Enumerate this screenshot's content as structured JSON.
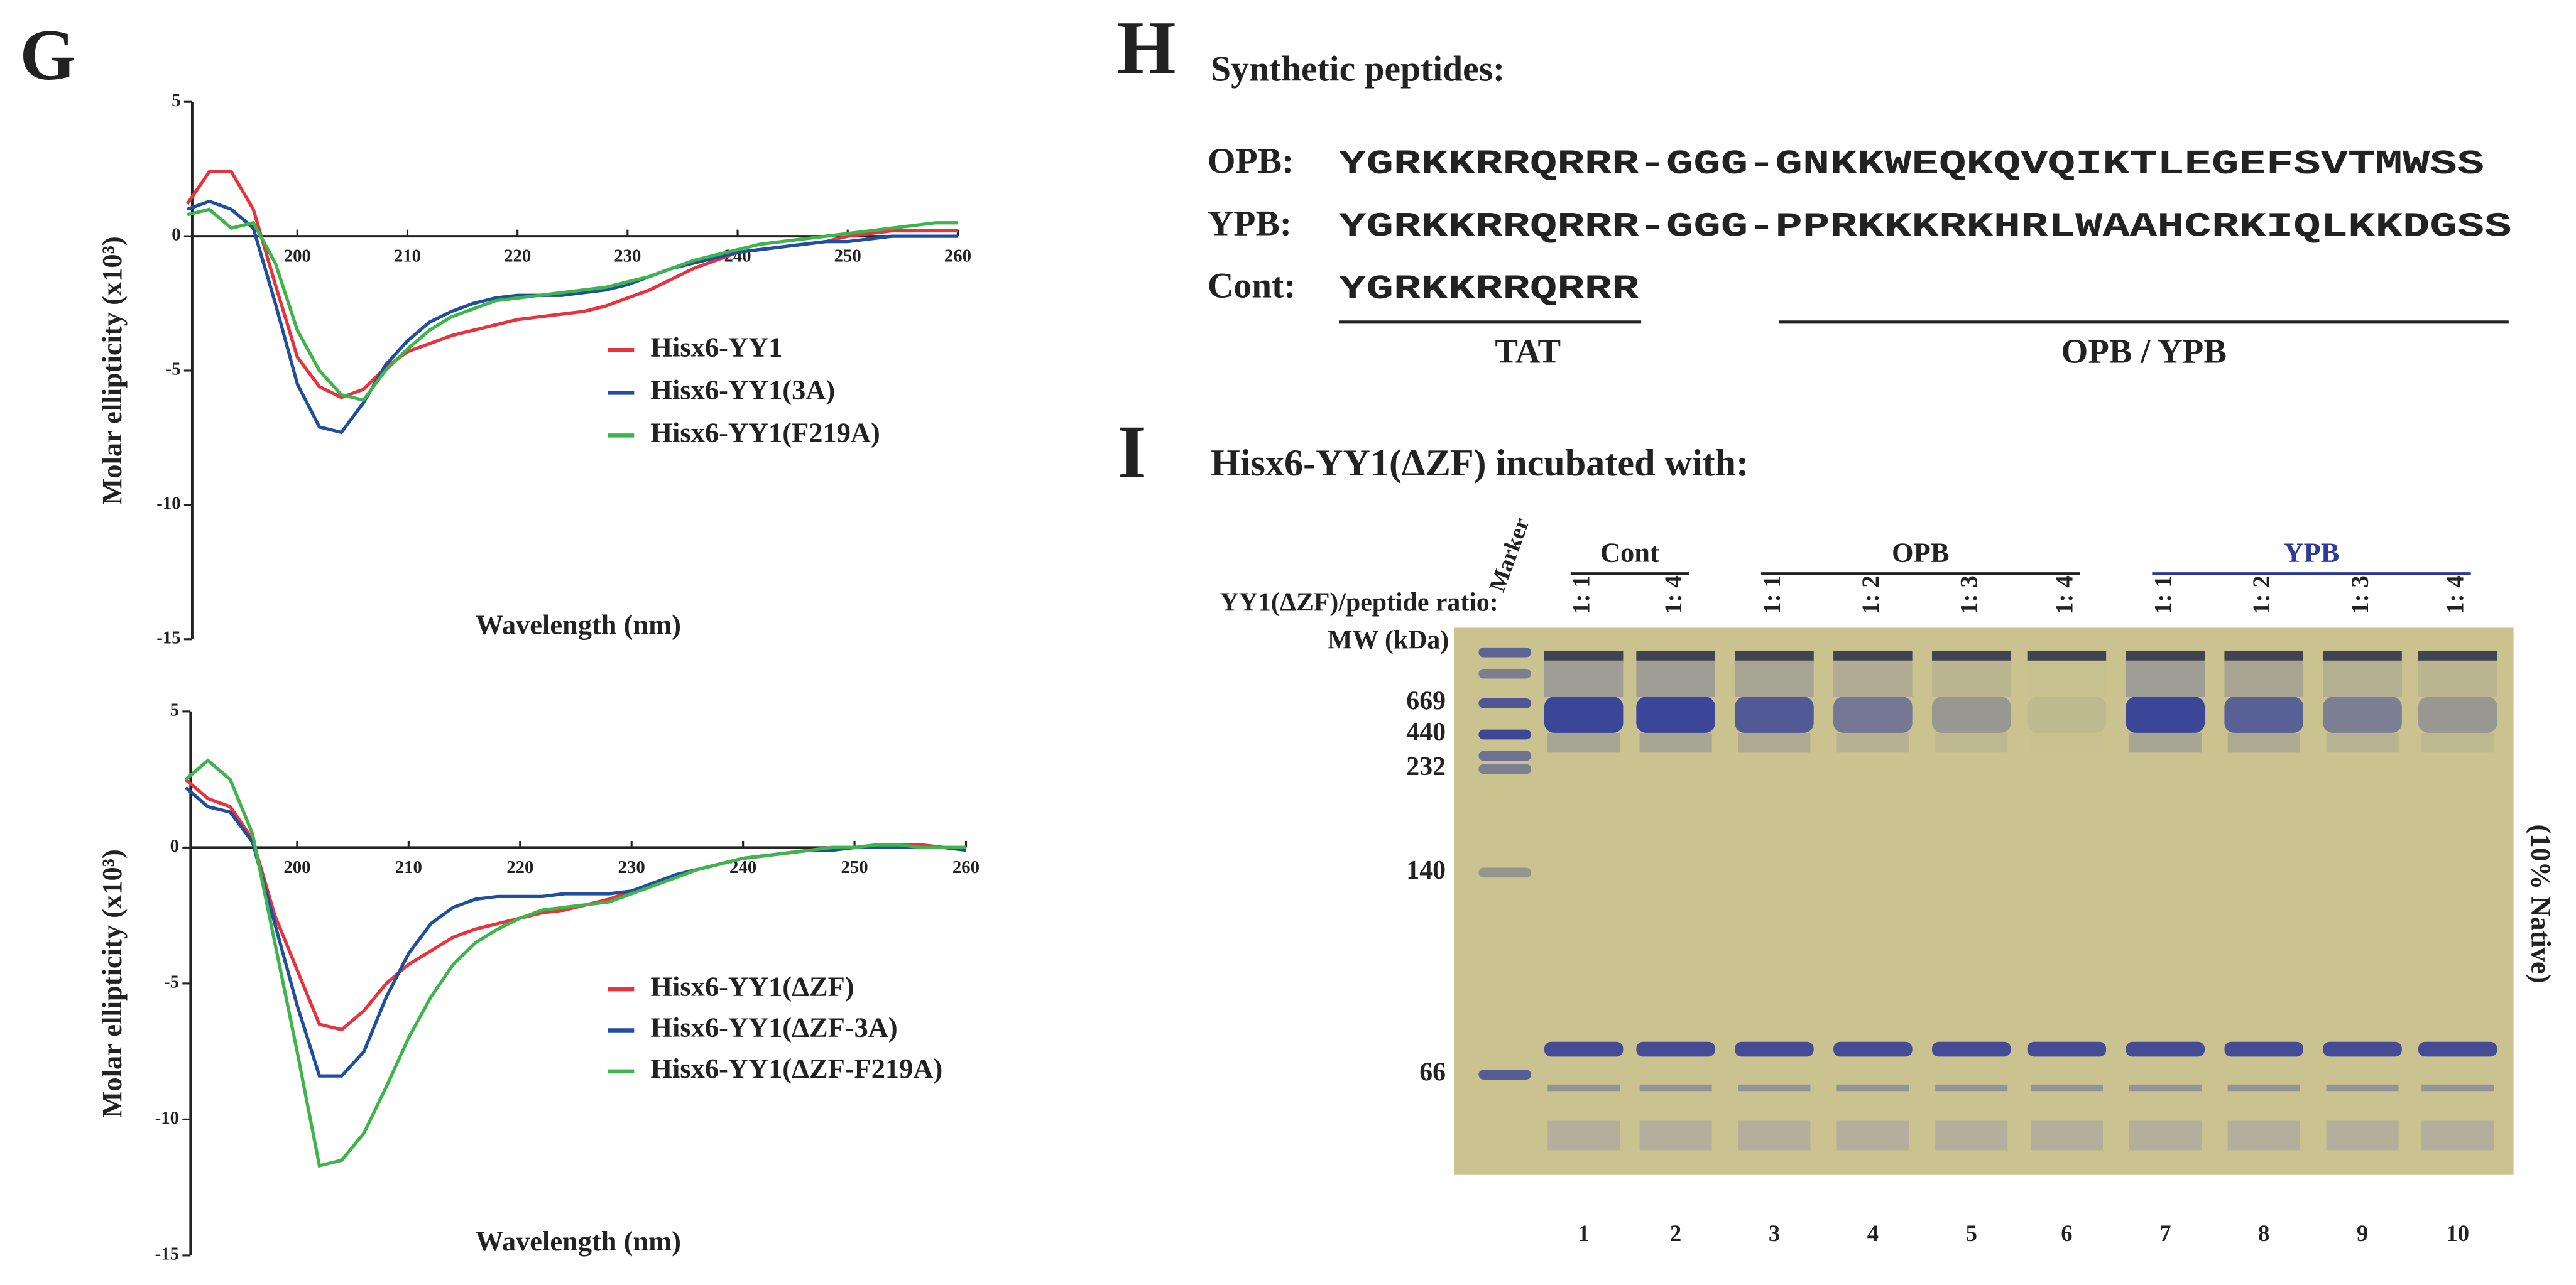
{
  "panel_g": {
    "letter": "G"
  },
  "chart_data": [
    {
      "type": "line",
      "y_label": "Molar ellipticity (x10³)",
      "x_label": "Wavelength (nm)",
      "x": [
        190,
        192,
        194,
        196,
        198,
        200,
        202,
        204,
        206,
        208,
        210,
        212,
        214,
        216,
        218,
        220,
        222,
        224,
        226,
        228,
        230,
        232,
        234,
        236,
        238,
        240,
        242,
        244,
        246,
        248,
        250,
        252,
        254,
        256,
        258,
        260
      ],
      "xlim": [
        190,
        260
      ],
      "xticks": [
        200,
        210,
        220,
        230,
        240,
        250,
        260
      ],
      "ylim": [
        -15,
        5
      ],
      "yticks": [
        -15,
        -10,
        -5,
        0,
        5
      ],
      "series": [
        {
          "name": "Hisx6-YY1",
          "color": "#e8333c",
          "values": [
            1.2,
            2.4,
            2.4,
            1.0,
            -1.8,
            -4.5,
            -5.6,
            -6.0,
            -5.7,
            -4.9,
            -4.3,
            -4.0,
            -3.7,
            -3.5,
            -3.3,
            -3.1,
            -3.0,
            -2.9,
            -2.8,
            -2.6,
            -2.3,
            -2.0,
            -1.6,
            -1.2,
            -0.9,
            -0.6,
            -0.5,
            -0.4,
            -0.3,
            -0.2,
            0,
            0.1,
            0.2,
            0.2,
            0.2,
            0.2
          ]
        },
        {
          "name": "Hisx6-YY1(3A)",
          "color": "#1f4f9e",
          "values": [
            1.0,
            1.3,
            1.0,
            0.3,
            -2.5,
            -5.5,
            -7.1,
            -7.3,
            -6.2,
            -4.8,
            -3.9,
            -3.2,
            -2.8,
            -2.5,
            -2.3,
            -2.2,
            -2.2,
            -2.2,
            -2.1,
            -2.0,
            -1.8,
            -1.5,
            -1.2,
            -1.0,
            -0.8,
            -0.6,
            -0.5,
            -0.4,
            -0.3,
            -0.2,
            -0.2,
            -0.1,
            0,
            0,
            0,
            0
          ]
        },
        {
          "name": "Hisx6-YY1(F219A)",
          "color": "#3db54a",
          "values": [
            0.8,
            1.0,
            0.3,
            0.5,
            -1.0,
            -3.5,
            -5.0,
            -5.9,
            -6.1,
            -5.0,
            -4.2,
            -3.5,
            -3.0,
            -2.7,
            -2.4,
            -2.3,
            -2.2,
            -2.1,
            -2.0,
            -1.9,
            -1.7,
            -1.5,
            -1.2,
            -0.9,
            -0.7,
            -0.5,
            -0.3,
            -0.2,
            -0.1,
            0,
            0.1,
            0.2,
            0.3,
            0.4,
            0.5,
            0.5
          ]
        }
      ]
    },
    {
      "type": "line",
      "y_label": "Molar ellipticity (x10³)",
      "x_label": "Wavelength (nm)",
      "x": [
        190,
        192,
        194,
        196,
        198,
        200,
        202,
        204,
        206,
        208,
        210,
        212,
        214,
        216,
        218,
        220,
        222,
        224,
        226,
        228,
        230,
        232,
        234,
        236,
        238,
        240,
        242,
        244,
        246,
        248,
        250,
        252,
        254,
        256,
        258,
        260
      ],
      "xlim": [
        190,
        260
      ],
      "xticks": [
        200,
        210,
        220,
        230,
        240,
        250,
        260
      ],
      "ylim": [
        -15,
        5
      ],
      "yticks": [
        -15,
        -10,
        -5,
        0,
        5
      ],
      "series": [
        {
          "name": "Hisx6-YY1(ΔZF)",
          "color": "#e8333c",
          "values": [
            2.5,
            1.8,
            1.5,
            0.3,
            -2.5,
            -4.5,
            -6.5,
            -6.7,
            -6.0,
            -5.0,
            -4.3,
            -3.8,
            -3.3,
            -3.0,
            -2.8,
            -2.6,
            -2.4,
            -2.3,
            -2.1,
            -1.9,
            -1.6,
            -1.3,
            -1.0,
            -0.8,
            -0.6,
            -0.4,
            -0.3,
            -0.2,
            -0.1,
            0,
            0,
            0,
            0.1,
            0.1,
            0,
            0
          ]
        },
        {
          "name": "Hisx6-YY1(ΔZF-3A)",
          "color": "#1f4f9e",
          "values": [
            2.2,
            1.5,
            1.3,
            0.2,
            -2.8,
            -5.8,
            -8.4,
            -8.4,
            -7.5,
            -5.5,
            -3.9,
            -2.8,
            -2.2,
            -1.9,
            -1.8,
            -1.8,
            -1.8,
            -1.7,
            -1.7,
            -1.7,
            -1.6,
            -1.3,
            -1.0,
            -0.8,
            -0.6,
            -0.4,
            -0.3,
            -0.2,
            -0.1,
            -0.1,
            0,
            0,
            0,
            0,
            0,
            -0.1
          ]
        },
        {
          "name": "Hisx6-YY1(ΔZF-F219A)",
          "color": "#3db54a",
          "values": [
            2.5,
            3.2,
            2.5,
            0.5,
            -3.5,
            -7.5,
            -11.7,
            -11.5,
            -10.5,
            -8.8,
            -7.0,
            -5.5,
            -4.3,
            -3.5,
            -3.0,
            -2.6,
            -2.3,
            -2.2,
            -2.1,
            -2.0,
            -1.7,
            -1.4,
            -1.1,
            -0.8,
            -0.6,
            -0.4,
            -0.3,
            -0.2,
            -0.1,
            0,
            0,
            0.1,
            0.1,
            0,
            0,
            0
          ]
        }
      ]
    }
  ],
  "panel_h": {
    "letter": "H",
    "title": "Synthetic peptides:",
    "rows": [
      {
        "label": "OPB:",
        "sequence": "YGRKKRRQRRR-GGG-GNKKWEQKQVQIKTLEGEFSVTMWSS"
      },
      {
        "label": "YPB:",
        "sequence": "YGRKKRRQRRR-GGG-PPRKKKRKHRLWAAHCRKIQLKKDGSS"
      },
      {
        "label": "Cont:",
        "sequence": "YGRKKRRQRRR"
      }
    ],
    "brackets": [
      "TAT",
      "OPB / YPB"
    ]
  },
  "panel_i": {
    "letter": "I",
    "title": "Hisx6-YY1(ΔZF) incubated with:",
    "marker_label": "Marker",
    "ratio_label": "YY1(ΔZF)/peptide ratio:",
    "mw_label": "MW (kDa)",
    "groups": [
      {
        "name": "Cont",
        "color": "#222222"
      },
      {
        "name": "OPB",
        "color": "#222222"
      },
      {
        "name": "YPB",
        "color": "#2d3a9c"
      }
    ],
    "ratios": [
      "1: 1",
      "1: 4",
      "1: 1",
      "1: 2",
      "1: 3",
      "1: 4",
      "1: 1",
      "1: 2",
      "1: 3",
      "1: 4"
    ],
    "mw_markers": [
      669,
      440,
      232,
      140,
      66
    ],
    "lane_numbers": [
      1,
      2,
      3,
      4,
      5,
      6,
      7,
      8,
      9,
      10
    ],
    "gel_label": "(10% Native)"
  }
}
